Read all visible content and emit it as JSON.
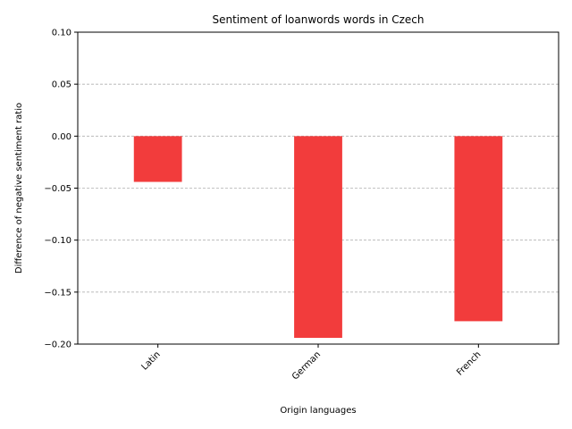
{
  "chart_data": {
    "type": "bar",
    "title": "Sentiment of loanwords words in Czech",
    "xlabel": "Origin languages",
    "ylabel": "Difference of negative sentiment ratio",
    "categories": [
      "Latin",
      "German",
      "French"
    ],
    "values": [
      -0.044,
      -0.194,
      -0.178
    ],
    "ylim": [
      -0.2,
      0.1
    ],
    "yticks": [
      0.1,
      0.05,
      0.0,
      -0.05,
      -0.1,
      -0.15,
      -0.2
    ],
    "ytick_labels": [
      "0.10",
      "0.05",
      "0.00",
      "−0.05",
      "−0.10",
      "−0.15",
      "−0.20"
    ],
    "grid": "y-dashed",
    "bar_color": "#f23c3c",
    "grid_color": "#b0b0b0"
  }
}
